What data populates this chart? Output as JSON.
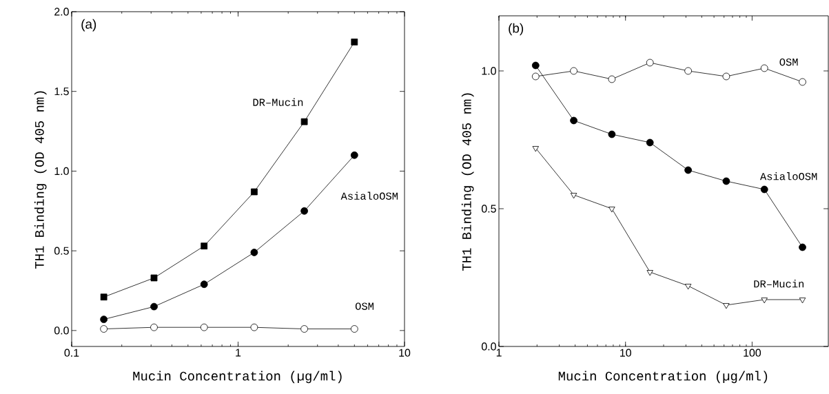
{
  "chart_data": [
    {
      "type": "line",
      "title": "(a)",
      "xlabel": "Mucin Concentration (µg/ml)",
      "ylabel": "TH1 Binding (OD 405 nm)",
      "log": "x",
      "xlim": [
        0.1,
        10
      ],
      "ylim": [
        -0.1,
        2.0
      ],
      "xticks": [
        0.1,
        1,
        10
      ],
      "yticks": [
        {
          "value": 0,
          "label": "0.0"
        },
        {
          "value": 0.5,
          "label": "0.5"
        },
        {
          "value": 1.0,
          "label": "1.0"
        },
        {
          "value": 1.5,
          "label": "1.5"
        },
        {
          "value": 2.0,
          "label": "2.0"
        }
      ],
      "grid": false,
      "legend": false,
      "x": [
        0.156,
        0.3125,
        0.625,
        1.25,
        2.5,
        5
      ],
      "series": [
        {
          "name": "DR–Mucin",
          "color": "#000000",
          "marker": "square",
          "values": [
            0.21,
            0.33,
            0.53,
            0.87,
            1.31,
            1.81
          ]
        },
        {
          "name": "AsialoOSM",
          "color": "#000000",
          "marker": "circle",
          "values": [
            0.07,
            0.15,
            0.29,
            0.49,
            0.75,
            1.1
          ]
        },
        {
          "name": "OSM",
          "color": "#ffffff",
          "marker": "circle",
          "values": [
            0.01,
            0.02,
            0.02,
            0.02,
            0.01,
            0.01
          ]
        }
      ]
    },
    {
      "type": "line",
      "title": "(b)",
      "xlabel": "Mucin Concentration (µg/ml)",
      "ylabel": "TH1 Binding (OD 405 nm)",
      "log": "x",
      "xlim": [
        1,
        400
      ],
      "ylim": [
        0,
        1.2
      ],
      "xticks": [
        1,
        10,
        100
      ],
      "yticks": [
        {
          "value": 0,
          "label": "0.0"
        },
        {
          "value": 0.5,
          "label": "0.5"
        },
        {
          "value": 1.0,
          "label": "1.0"
        }
      ],
      "grid": false,
      "legend": false,
      "x": [
        1.95,
        3.9,
        7.8,
        15.6,
        31.25,
        62.5,
        125,
        250
      ],
      "series": [
        {
          "name": "OSM",
          "color": "#ffffff",
          "marker": "circle",
          "values": [
            0.98,
            1.0,
            0.97,
            1.03,
            1.0,
            0.98,
            1.01,
            0.96
          ]
        },
        {
          "name": "AsialoOSM",
          "color": "#000000",
          "marker": "circle",
          "values": [
            1.02,
            0.82,
            0.77,
            0.74,
            0.64,
            0.6,
            0.57,
            0.36
          ]
        },
        {
          "name": "DR–Mucin",
          "color": "#ffffff",
          "marker": "triangle",
          "values": [
            0.72,
            0.55,
            0.5,
            0.27,
            0.22,
            0.15,
            0.17,
            0.17
          ]
        }
      ]
    }
  ]
}
